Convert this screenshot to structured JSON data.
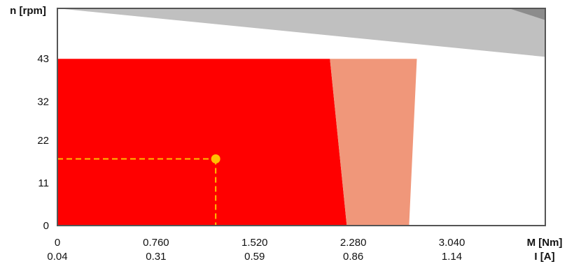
{
  "chart_data": {
    "type": "area",
    "title": "",
    "y_axis": {
      "label": "n [rpm]",
      "ticks": [
        0,
        11,
        22,
        32,
        43
      ],
      "range": [
        0,
        56
      ]
    },
    "x_axis_primary": {
      "label": "M [Nm]",
      "ticks": [
        "0",
        "0.760",
        "1.520",
        "2.280",
        "3.040"
      ],
      "range": [
        0,
        3.76
      ]
    },
    "x_axis_secondary": {
      "label": "I [A]",
      "ticks": [
        "0.04",
        "0.31",
        "0.59",
        "0.86",
        "1.14"
      ]
    },
    "regions": [
      {
        "role": "upper band",
        "color": "#c0c0c0",
        "polygon": [
          [
            0,
            56
          ],
          [
            3.76,
            56
          ],
          [
            3.76,
            43.5
          ],
          [
            0,
            56
          ]
        ]
      },
      {
        "role": "upper band corner",
        "color": "#8c8c8c",
        "polygon": [
          [
            3.48,
            56
          ],
          [
            3.76,
            56
          ],
          [
            3.76,
            53
          ]
        ]
      },
      {
        "role": "continuous operation",
        "color": "#ff0000",
        "polygon": [
          [
            0,
            0
          ],
          [
            2.23,
            0
          ],
          [
            2.1,
            43
          ],
          [
            0,
            43
          ]
        ]
      },
      {
        "role": "intermittent operation",
        "color": "#f0977a",
        "polygon": [
          [
            2.1,
            43
          ],
          [
            2.77,
            43
          ],
          [
            2.71,
            0
          ],
          [
            2.23,
            0
          ]
        ]
      }
    ],
    "operating_point": {
      "x": 1.22,
      "y": 17.2,
      "color": "#ffc000"
    },
    "grid": false,
    "legend": "none"
  }
}
